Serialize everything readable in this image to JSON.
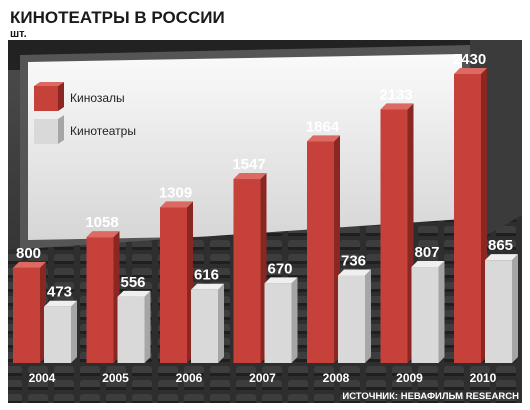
{
  "colors": {
    "red_front": "#c6413a",
    "red_side": "#8a2722",
    "red_top": "#dd6a62",
    "gray_front": "#d9d9d9",
    "gray_side": "#a6a6a6",
    "gray_top": "#efefef"
  },
  "source": "ИСТОЧНИК: НЕВАФИЛЬМ RESEARCH",
  "chart_data": {
    "type": "bar",
    "title": "КИНОТЕАТРЫ В РОССИИ",
    "unit": "шт.",
    "categories": [
      "2004",
      "2005",
      "2006",
      "2007",
      "2008",
      "2009",
      "2010"
    ],
    "series": [
      {
        "name": "Кинозалы",
        "values": [
          800,
          1058,
          1309,
          1547,
          1864,
          2133,
          2430
        ]
      },
      {
        "name": "Кинотеатры",
        "values": [
          473,
          556,
          616,
          670,
          736,
          807,
          865
        ]
      }
    ],
    "ylim": [
      0,
      2430
    ],
    "grid": false,
    "legend_position": "top-left",
    "value_labels": true
  }
}
